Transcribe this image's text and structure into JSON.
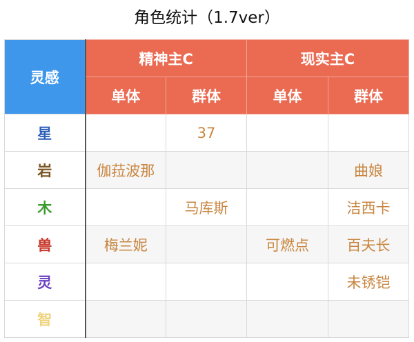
{
  "title": "角色统计（1.7ver）",
  "header": {
    "corner": "灵感",
    "groups": [
      "精神主C",
      "现实主C"
    ],
    "subs": [
      "单体",
      "群体",
      "单体",
      "群体"
    ]
  },
  "colors": {
    "header_blue": "#3f97ec",
    "header_orange": "#ea6a52",
    "cell_text": "#c8853f"
  },
  "rows": [
    {
      "label": "星",
      "color": "#2c5fb8",
      "cells": [
        "",
        "37",
        "",
        ""
      ]
    },
    {
      "label": "岩",
      "color": "#7a5522",
      "cells": [
        "伽菈波那",
        "",
        "",
        "曲娘"
      ]
    },
    {
      "label": "木",
      "color": "#3a9a2c",
      "cells": [
        "",
        "马库斯",
        "",
        "洁西卡"
      ]
    },
    {
      "label": "兽",
      "color": "#c8382c",
      "cells": [
        "梅兰妮",
        "",
        "可燃点",
        "百夫长"
      ]
    },
    {
      "label": "灵",
      "color": "#6a3fc0",
      "cells": [
        "",
        "",
        "",
        "未锈铠"
      ]
    },
    {
      "label": "智",
      "color": "#efd27a",
      "cells": [
        "",
        "",
        "",
        ""
      ]
    }
  ]
}
